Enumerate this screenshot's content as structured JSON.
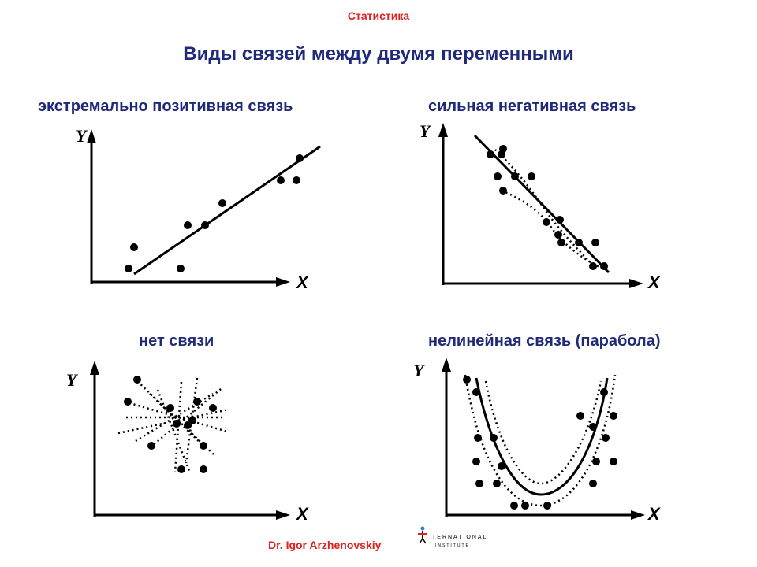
{
  "header": {
    "topic": "Статистика",
    "title": "Виды связей между двумя переменными"
  },
  "panels": [
    {
      "id": "positive",
      "title": "экстремально позитивная связь",
      "y_label": "Y",
      "x_label": "X"
    },
    {
      "id": "negative",
      "title": "сильная негативная связь",
      "y_label": "Y",
      "x_label": "X"
    },
    {
      "id": "none",
      "title": "нет связи",
      "y_label": "Y",
      "x_label": "X"
    },
    {
      "id": "parabola",
      "title": "нелинейная связь (парабола)",
      "y_label": "Y",
      "x_label": "X"
    }
  ],
  "footer": {
    "author": "Dr. Igor Arzhenovskiy",
    "logo_line1": "TERNATIONAL",
    "logo_line2": "INSTITUTE"
  },
  "colors": {
    "accent_red": "#e02020",
    "title_navy": "#1f2a7a"
  }
}
